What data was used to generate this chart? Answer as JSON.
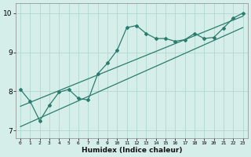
{
  "xlabel": "Humidex (Indice chaleur)",
  "bg_color": "#d6eeea",
  "line_color": "#2a7d6d",
  "grid_color": "#b0d8d2",
  "xlim": [
    -0.5,
    23.5
  ],
  "ylim": [
    6.8,
    10.25
  ],
  "yticks": [
    7,
    8,
    9,
    10
  ],
  "xticks": [
    0,
    1,
    2,
    3,
    4,
    5,
    6,
    7,
    8,
    9,
    10,
    11,
    12,
    13,
    14,
    15,
    16,
    17,
    18,
    19,
    20,
    21,
    22,
    23
  ],
  "x_data": [
    0,
    1,
    2,
    3,
    4,
    5,
    6,
    7,
    8,
    9,
    10,
    11,
    12,
    13,
    14,
    15,
    16,
    17,
    18,
    19,
    20,
    21,
    22,
    23
  ],
  "y_wavy": [
    8.05,
    7.75,
    7.25,
    7.65,
    7.98,
    8.05,
    7.82,
    7.78,
    8.45,
    8.72,
    9.05,
    9.63,
    9.68,
    9.48,
    9.35,
    9.35,
    9.28,
    9.32,
    9.48,
    9.35,
    9.38,
    9.62,
    9.87,
    10.0
  ],
  "y_line1": [
    7.62,
    7.72,
    7.82,
    7.92,
    8.02,
    8.12,
    8.22,
    8.32,
    8.42,
    8.52,
    8.62,
    8.72,
    8.82,
    8.92,
    9.02,
    9.12,
    9.22,
    9.32,
    9.42,
    9.52,
    9.62,
    9.72,
    9.82,
    9.92
  ],
  "y_line2": [
    7.1,
    7.21,
    7.32,
    7.43,
    7.54,
    7.65,
    7.76,
    7.87,
    7.98,
    8.09,
    8.2,
    8.31,
    8.42,
    8.53,
    8.64,
    8.75,
    8.86,
    8.97,
    9.08,
    9.19,
    9.3,
    9.41,
    9.52,
    9.63
  ]
}
